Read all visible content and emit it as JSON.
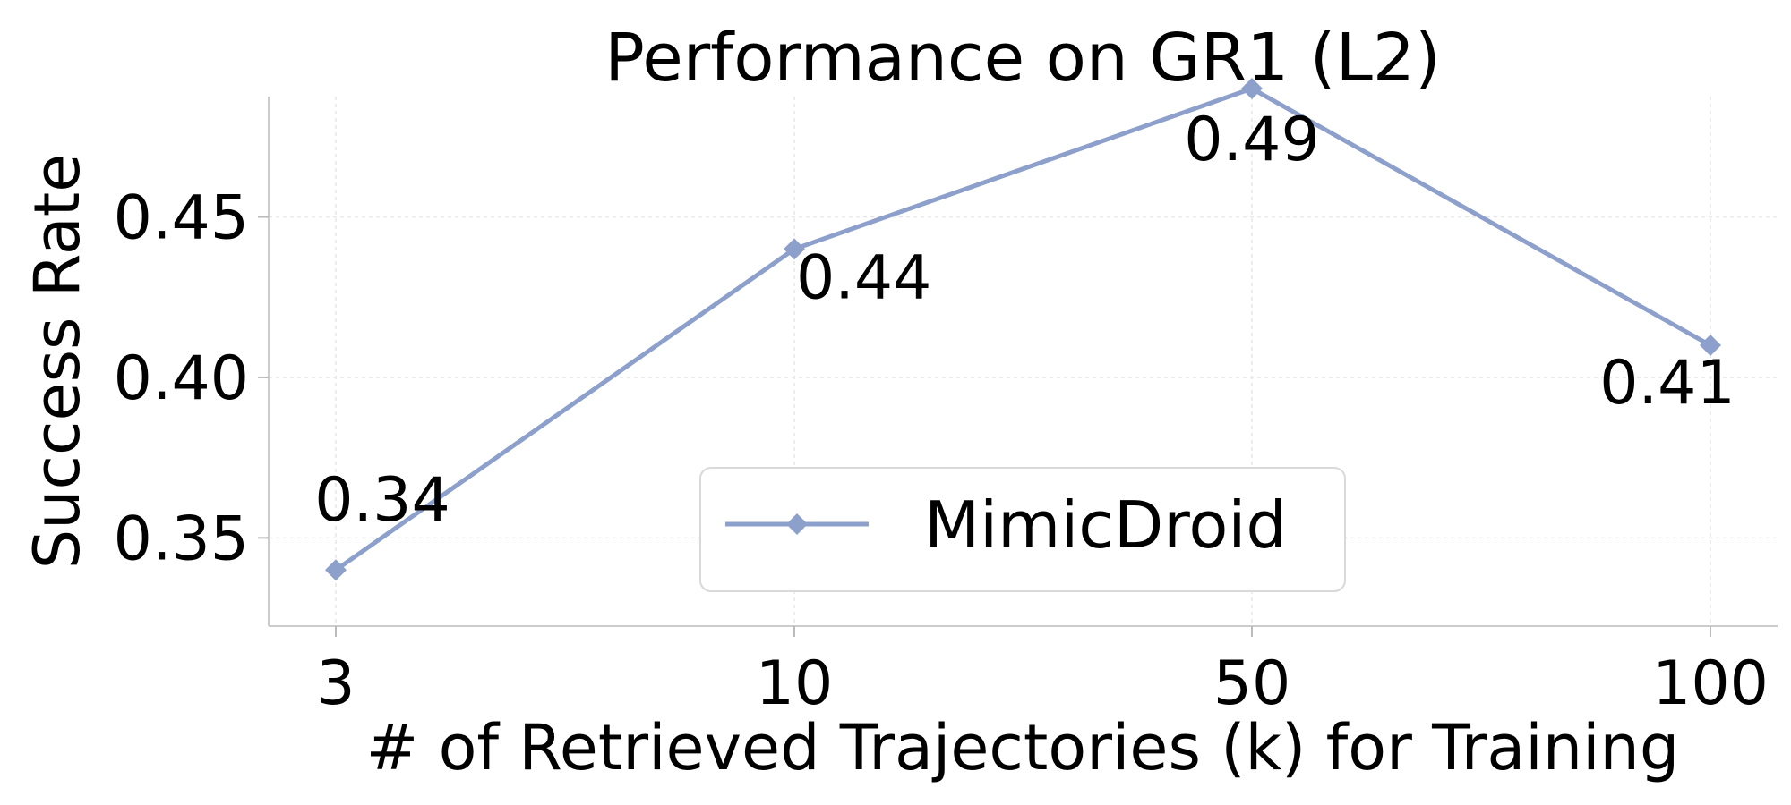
{
  "chart_data": {
    "type": "line",
    "title": "Performance on GR1 (L2)",
    "xlabel": "# of Retrieved Trajectories (k) for Training",
    "ylabel": "Success Rate",
    "categories": [
      "3",
      "10",
      "50",
      "100"
    ],
    "series": [
      {
        "name": "MimicDroid",
        "values": [
          0.34,
          0.44,
          0.49,
          0.41
        ],
        "labels": [
          "0.34",
          "0.44",
          "0.49",
          "0.41"
        ],
        "color": "#8da0cb",
        "marker": "diamond"
      }
    ],
    "ylim": [
      0.3225,
      0.4875
    ],
    "yticks": [
      0.35,
      0.4,
      0.45
    ],
    "ytick_labels": [
      "0.35",
      "0.40",
      "0.45"
    ],
    "grid": true,
    "legend_position": "lower-center"
  }
}
